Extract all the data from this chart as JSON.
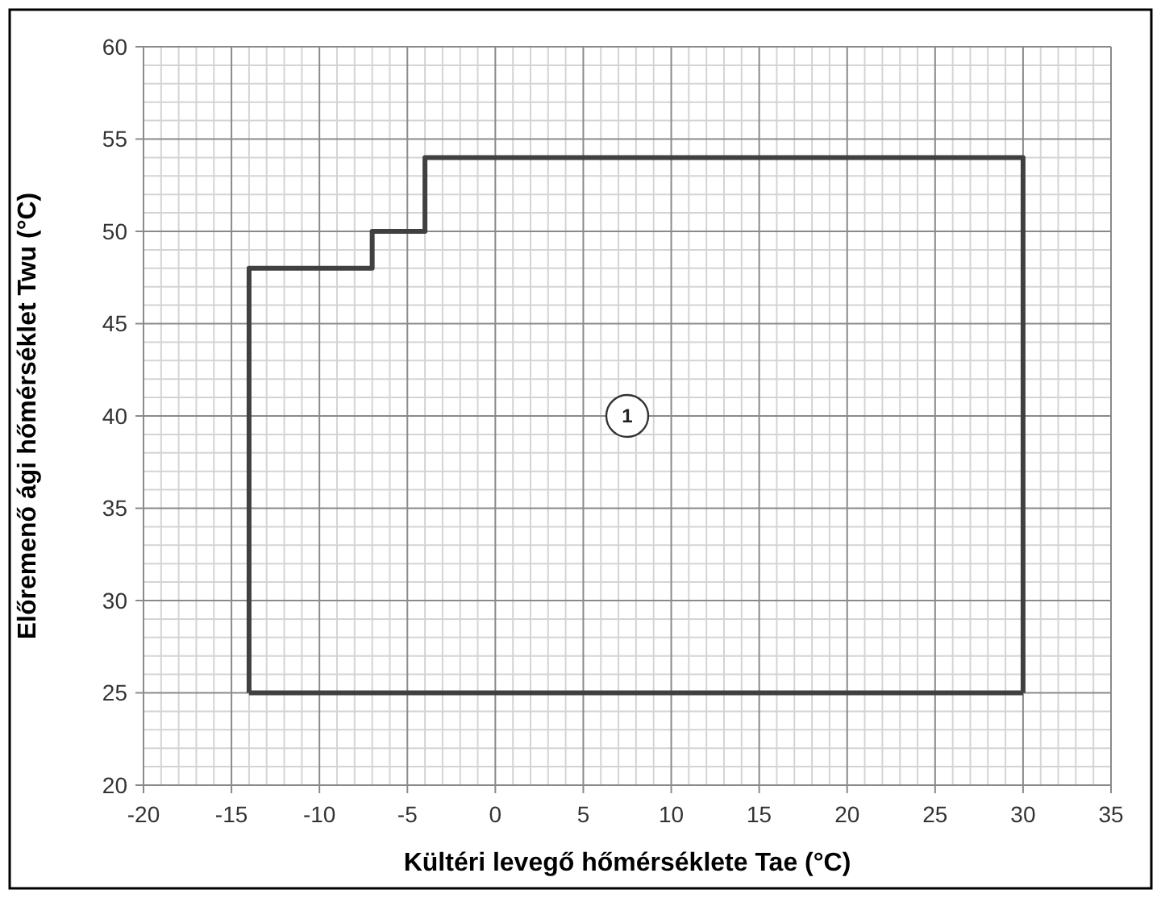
{
  "chart_data": {
    "type": "line",
    "xlabel": "Kültéri levegő hőmérséklete Tae (°C)",
    "ylabel": "Előremenő ági hőmérséklet Twu (°C)",
    "series": [
      {
        "color": "#404040",
        "x": [
          -14,
          -14,
          -7,
          -7,
          -4,
          -4,
          30,
          30
        ],
        "values": [
          25,
          48,
          48,
          50,
          50,
          54,
          54,
          25
        ]
      },
      {
        "color": "#404040",
        "x": [
          -14,
          30
        ],
        "values": [
          25,
          25
        ]
      }
    ],
    "xlim": [
      -20,
      35
    ],
    "xticks": [
      -20,
      -15,
      -10,
      -5,
      0,
      5,
      10,
      15,
      20,
      25,
      30,
      35
    ],
    "ylim": [
      20,
      60
    ],
    "yticks": [
      20,
      25,
      30,
      35,
      40,
      45,
      50,
      55,
      60
    ],
    "grid": true,
    "marker": "none",
    "line_style": "solid",
    "annotations": [
      {
        "text": "1",
        "x": 7.5,
        "y": 40
      }
    ]
  }
}
